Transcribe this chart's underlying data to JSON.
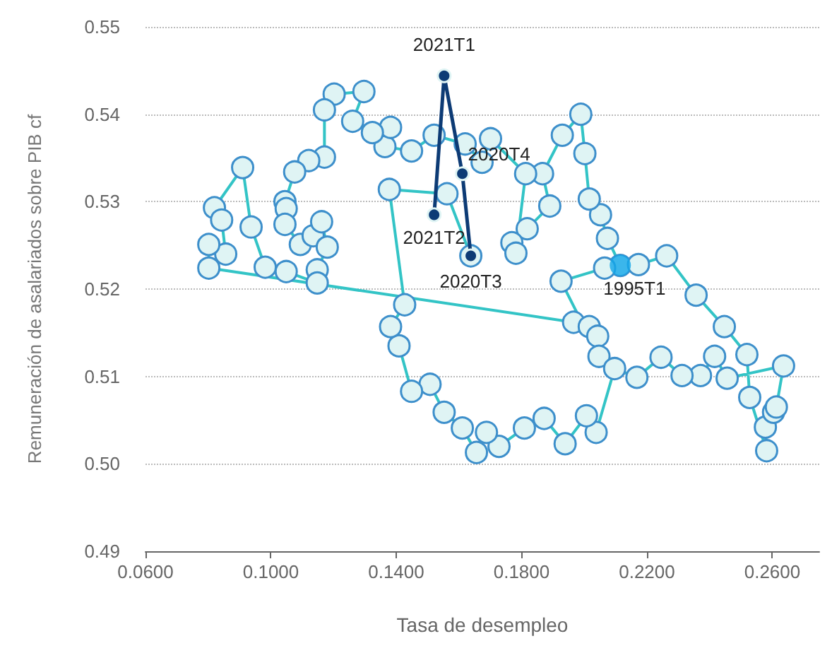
{
  "chart_data": {
    "type": "line",
    "xlabel": "Tasa de desempleo",
    "ylabel": "Remuneración de asalariados sobre PIB cf",
    "xlim": [
      0.06,
      0.275
    ],
    "xticks": [
      {
        "value": 0.06,
        "label": "0.0600"
      },
      {
        "value": 0.1,
        "label": "0.1000"
      },
      {
        "value": 0.14,
        "label": "0.1400"
      },
      {
        "value": 0.18,
        "label": "0.1800"
      },
      {
        "value": 0.22,
        "label": "0.2200"
      },
      {
        "value": 0.26,
        "label": "0.2600"
      }
    ],
    "ylim": [
      0.49,
      0.55
    ],
    "yticks": [
      {
        "value": 0.49,
        "label": "0.49"
      },
      {
        "value": 0.5,
        "label": "0.50"
      },
      {
        "value": 0.51,
        "label": "0.51"
      },
      {
        "value": 0.52,
        "label": "0.52"
      },
      {
        "value": 0.53,
        "label": "0.53"
      },
      {
        "value": 0.54,
        "label": "0.54"
      },
      {
        "value": 0.55,
        "label": "0.55"
      }
    ],
    "grid": "y",
    "marker": "circle",
    "line_style": "solid",
    "series": [
      {
        "color": "#33c4c6",
        "x": [
          0.2115,
          0.2074,
          0.2052,
          0.2016,
          0.2002,
          0.1989,
          0.193,
          0.1867,
          0.189,
          0.1818,
          0.1769,
          0.1782,
          0.1813,
          0.1701,
          0.1674,
          0.162,
          0.1521,
          0.1449,
          0.1364,
          0.1382,
          0.1324,
          0.1261,
          0.1297,
          0.1202,
          0.1171,
          0.1171,
          0.1121,
          0.1076,
          0.1045,
          0.1049,
          0.1045,
          0.1094,
          0.1135,
          0.1162,
          0.118,
          0.1148,
          0.1148,
          0.1049,
          0.0982,
          0.0937,
          0.091,
          0.082,
          0.0843,
          0.0856,
          0.0802,
          0.0802,
          0.1966,
          0.2016,
          0.2043,
          0.2047,
          0.1926,
          0.2065,
          0.2173,
          0.2263,
          0.2357,
          0.2447,
          0.2519,
          0.2528,
          0.2582,
          0.2578,
          0.2604,
          0.2613,
          0.2636,
          0.2456,
          0.2416,
          0.2371,
          0.2312,
          0.2245,
          0.2168,
          0.2097,
          0.2038,
          0.2007,
          0.1939,
          0.1872,
          0.1809,
          0.1728,
          0.1688,
          0.1656,
          0.1611,
          0.1553,
          0.1508,
          0.1449,
          0.1409,
          0.1382,
          0.1427,
          0.1378,
          0.1562,
          0.1638
        ],
        "values": [
          0.5227,
          0.5258,
          0.5285,
          0.5303,
          0.5355,
          0.54,
          0.5376,
          0.5332,
          0.5295,
          0.5269,
          0.5253,
          0.5241,
          0.5332,
          0.5372,
          0.5345,
          0.5366,
          0.5376,
          0.5358,
          0.5363,
          0.5385,
          0.5379,
          0.5392,
          0.5426,
          0.5423,
          0.5405,
          0.5351,
          0.5347,
          0.5334,
          0.53,
          0.5292,
          0.5274,
          0.5251,
          0.5261,
          0.5277,
          0.5248,
          0.5222,
          0.5207,
          0.522,
          0.5225,
          0.5271,
          0.5339,
          0.5293,
          0.5279,
          0.524,
          0.5251,
          0.5224,
          0.5162,
          0.5157,
          0.5146,
          0.5123,
          0.5209,
          0.5224,
          0.5228,
          0.5238,
          0.5193,
          0.5157,
          0.5125,
          0.5076,
          0.5015,
          0.5042,
          0.5059,
          0.5065,
          0.5112,
          0.5098,
          0.5123,
          0.5101,
          0.5101,
          0.5122,
          0.5099,
          0.5109,
          0.5036,
          0.5055,
          0.5023,
          0.5052,
          0.5041,
          0.502,
          0.5036,
          0.5013,
          0.5041,
          0.5059,
          0.5091,
          0.5083,
          0.5135,
          0.5157,
          0.5182,
          0.5314,
          0.5309,
          0.5238
        ]
      },
      {
        "color": "#0d3b75",
        "x": [
          0.1638,
          0.1611,
          0.1553,
          0.1521
        ],
        "values": [
          0.5238,
          0.5332,
          0.5444,
          0.5285
        ]
      },
      {
        "type": "scatter",
        "color": "#12a6e8",
        "x": [
          0.2115
        ],
        "values": [
          0.5227
        ]
      }
    ],
    "annotations": [
      {
        "text": "2021T1",
        "x": 0.1553,
        "y": 0.5444
      },
      {
        "text": "2020T4",
        "x": 0.1611,
        "y": 0.5332
      },
      {
        "text": "2021T2",
        "x": 0.1521,
        "y": 0.5285
      },
      {
        "text": "2020T3",
        "x": 0.1638,
        "y": 0.5238
      },
      {
        "text": "1995T1",
        "x": 0.2115,
        "y": 0.5227
      }
    ]
  }
}
